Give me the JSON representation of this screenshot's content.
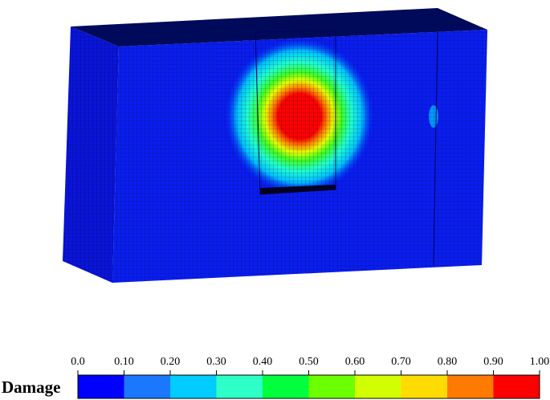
{
  "legend": {
    "title": "Damage",
    "ticks": [
      {
        "value": 0,
        "label": "0.0"
      },
      {
        "value": 0.1,
        "label": "0.10"
      },
      {
        "value": 0.2,
        "label": "0.20"
      },
      {
        "value": 0.3,
        "label": "0.30"
      },
      {
        "value": 0.4,
        "label": "0.40"
      },
      {
        "value": 0.5,
        "label": "0.50"
      },
      {
        "value": 0.6,
        "label": "0.60"
      },
      {
        "value": 0.7,
        "label": "0.70"
      },
      {
        "value": 0.8,
        "label": "0.80"
      },
      {
        "value": 0.9,
        "label": "0.90"
      },
      {
        "value": 1,
        "label": "1.00"
      }
    ],
    "colors": [
      "#0000ff",
      "#1a78ff",
      "#00ccff",
      "#2effc8",
      "#00ff3c",
      "#6cff00",
      "#d2ff00",
      "#ffdc00",
      "#ff7a00",
      "#ff0000"
    ]
  }
}
